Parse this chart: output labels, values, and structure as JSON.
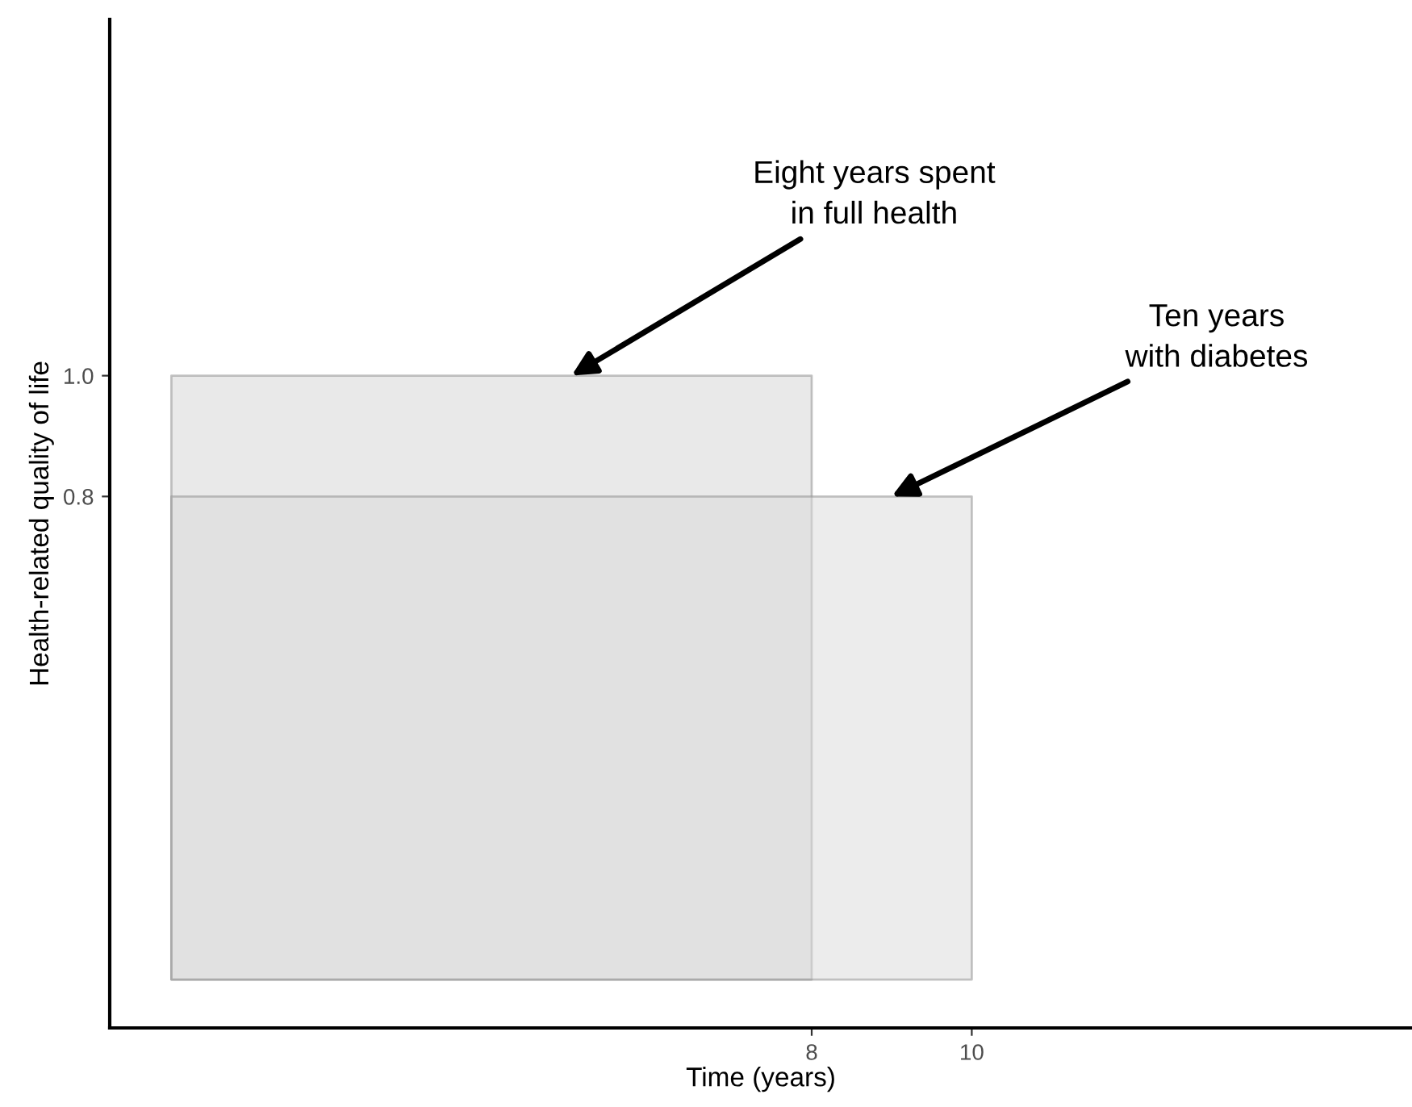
{
  "chart_data": {
    "type": "area",
    "xlabel": "Time (years)",
    "ylabel": "Health-related quality of life",
    "series": [
      {
        "x": [
          0,
          8
        ],
        "values": [
          1.0,
          1.0
        ],
        "color": "#d4d4d4"
      },
      {
        "x": [
          0,
          10
        ],
        "values": [
          0.8,
          0.8
        ],
        "color": "#dadada"
      }
    ],
    "annotations": [
      {
        "text": "Eight years spent\nin full health",
        "x": 5,
        "y": 1.0
      },
      {
        "text": "Ten years\nwith diabetes",
        "x": 9,
        "y": 0.8
      }
    ],
    "xlim": [
      -0.77,
      15.5
    ],
    "ylim": [
      -0.08,
      1.59
    ],
    "xticks": [
      8,
      10
    ],
    "yticks": [
      0.8,
      {
        "value": 1.0,
        "label": "1.0"
      }
    ],
    "grid": false,
    "legend": false
  }
}
